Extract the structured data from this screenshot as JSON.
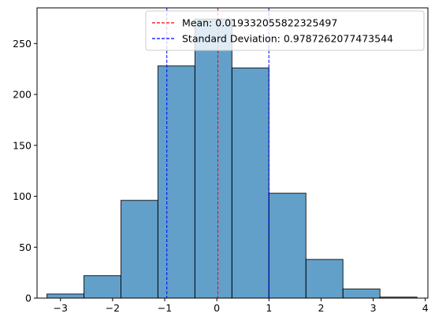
{
  "chart_data": {
    "type": "bar",
    "subtype": "histogram",
    "xlim": [
      -3.45,
      4.05
    ],
    "ylim": [
      0,
      285
    ],
    "x_ticks": [
      -3,
      -2,
      -1,
      0,
      1,
      2,
      3,
      4
    ],
    "y_ticks": [
      0,
      50,
      100,
      150,
      200,
      250
    ],
    "bins": [
      {
        "start": -3.26,
        "end": -2.55,
        "count": 4
      },
      {
        "start": -2.55,
        "end": -1.84,
        "count": 22
      },
      {
        "start": -1.84,
        "end": -1.13,
        "count": 96
      },
      {
        "start": -1.13,
        "end": -0.42,
        "count": 228
      },
      {
        "start": -0.42,
        "end": 0.29,
        "count": 274
      },
      {
        "start": 0.29,
        "end": 1.0,
        "count": 226
      },
      {
        "start": 1.0,
        "end": 1.71,
        "count": 103
      },
      {
        "start": 1.71,
        "end": 2.42,
        "count": 38
      },
      {
        "start": 2.42,
        "end": 3.13,
        "count": 9
      },
      {
        "start": 3.13,
        "end": 3.84,
        "count": 1
      }
    ],
    "bar_color": "#1f77b4",
    "bar_alpha": 0.7,
    "bar_edge_color": "#000000",
    "mean": 0.019332055822325497,
    "std": 0.9787262077473544,
    "series": [
      {
        "name": "Mean: 0.019332055822325497",
        "color": "#ff0000",
        "style": "dashed"
      },
      {
        "name": "Standard Deviation: 0.9787262077473544",
        "color": "#0000ff",
        "style": "dashed"
      }
    ],
    "legend_position": "top-right",
    "grid": false,
    "title": "",
    "xlabel": "",
    "ylabel": ""
  }
}
